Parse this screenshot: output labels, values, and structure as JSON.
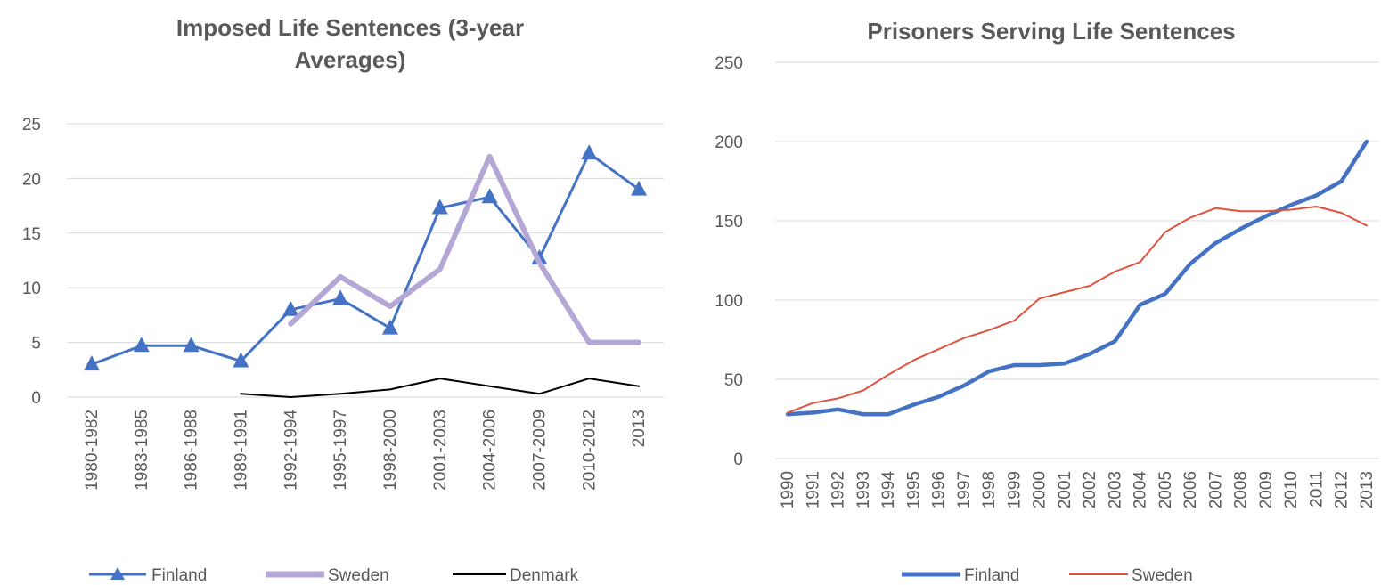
{
  "chart_data": [
    {
      "type": "line",
      "title_line1": "Imposed Life Sentences (3-year",
      "title_line2": "Averages)",
      "categories": [
        "1980-1982",
        "1983-1985",
        "1986-1988",
        "1989-1991",
        "1992-1994",
        "1995-1997",
        "1998-2000",
        "2001-2003",
        "2004-2006",
        "2007-2009",
        "2010-2012",
        "2013"
      ],
      "ylim": [
        0,
        25
      ],
      "yticks": [
        0,
        5,
        10,
        15,
        20,
        25
      ],
      "grid": true,
      "legend_position": "bottom",
      "series": [
        {
          "name": "Finland",
          "color": "#4472C4",
          "marker": "triangle",
          "values": [
            3.0,
            4.7,
            4.7,
            3.3,
            8.0,
            9.0,
            6.3,
            17.3,
            18.3,
            12.7,
            22.3,
            19.0
          ]
        },
        {
          "name": "Sweden",
          "color": "#B4A7D6",
          "marker": "none",
          "values": [
            null,
            null,
            null,
            null,
            6.7,
            11.0,
            8.3,
            11.7,
            22.0,
            12.3,
            5.0,
            5.0
          ]
        },
        {
          "name": "Denmark",
          "color": "#000000",
          "marker": "none",
          "values": [
            null,
            null,
            null,
            0.3,
            0.0,
            0.3,
            0.7,
            1.7,
            1.0,
            0.3,
            1.7,
            1.0
          ]
        }
      ]
    },
    {
      "type": "line",
      "title": "Prisoners Serving Life Sentences",
      "categories": [
        "1990",
        "1991",
        "1992",
        "1993",
        "1994",
        "1995",
        "1996",
        "1997",
        "1998",
        "1999",
        "2000",
        "2001",
        "2002",
        "2003",
        "2004",
        "2005",
        "2006",
        "2007",
        "2008",
        "2009",
        "2010",
        "2011",
        "2012",
        "2013"
      ],
      "ylim": [
        0,
        250
      ],
      "yticks": [
        0,
        50,
        100,
        150,
        200,
        250
      ],
      "grid": true,
      "legend_position": "bottom",
      "series": [
        {
          "name": "Finland",
          "color": "#4472C4",
          "values": [
            28,
            29,
            31,
            28,
            28,
            34,
            39,
            46,
            55,
            59,
            59,
            60,
            66,
            74,
            97,
            104,
            123,
            136,
            145,
            153,
            160,
            166,
            175,
            200
          ]
        },
        {
          "name": "Sweden",
          "color": "#E0533F",
          "values": [
            29,
            35,
            38,
            43,
            53,
            62,
            69,
            76,
            81,
            87,
            101,
            105,
            109,
            118,
            124,
            143,
            152,
            158,
            156,
            156,
            157,
            159,
            155,
            147
          ]
        }
      ]
    }
  ]
}
